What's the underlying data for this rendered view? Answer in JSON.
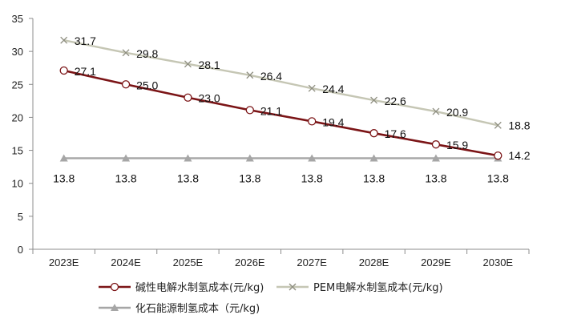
{
  "chart_data": {
    "type": "line",
    "categories": [
      "2023E",
      "2024E",
      "2025E",
      "2026E",
      "2027E",
      "2028E",
      "2029E",
      "2030E"
    ],
    "ylim": [
      0,
      35
    ],
    "yticks": [
      0,
      5,
      10,
      15,
      20,
      25,
      30,
      35
    ],
    "grid": false,
    "legend_position": "bottom",
    "series": [
      {
        "name": "碱性电解水制氢成本(元/kg)",
        "values": [
          27.1,
          25.0,
          23.0,
          21.1,
          19.4,
          17.6,
          15.9,
          14.2
        ],
        "labels": [
          "27.1",
          "25.0",
          "23.0",
          "21.1",
          "19.4",
          "17.6",
          "15.9",
          "14.2"
        ],
        "color": "#7b1416",
        "marker": "circle"
      },
      {
        "name": "PEM电解水制氢成本(元/kg)",
        "values": [
          31.7,
          29.8,
          28.1,
          26.4,
          24.4,
          22.6,
          20.9,
          18.8
        ],
        "labels": [
          "31.7",
          "29.8",
          "28.1",
          "26.4",
          "24.4",
          "22.6",
          "20.9",
          "18.8"
        ],
        "color": "#c5c6b4",
        "marker": "x"
      },
      {
        "name": "化石能源制氢成本（元/kg)",
        "values": [
          13.8,
          13.8,
          13.8,
          13.8,
          13.8,
          13.8,
          13.8,
          13.8
        ],
        "labels": [
          "13.8",
          "13.8",
          "13.8",
          "13.8",
          "13.8",
          "13.8",
          "13.8",
          "13.8"
        ],
        "color": "#a6a6a6",
        "marker": "triangle"
      }
    ]
  }
}
